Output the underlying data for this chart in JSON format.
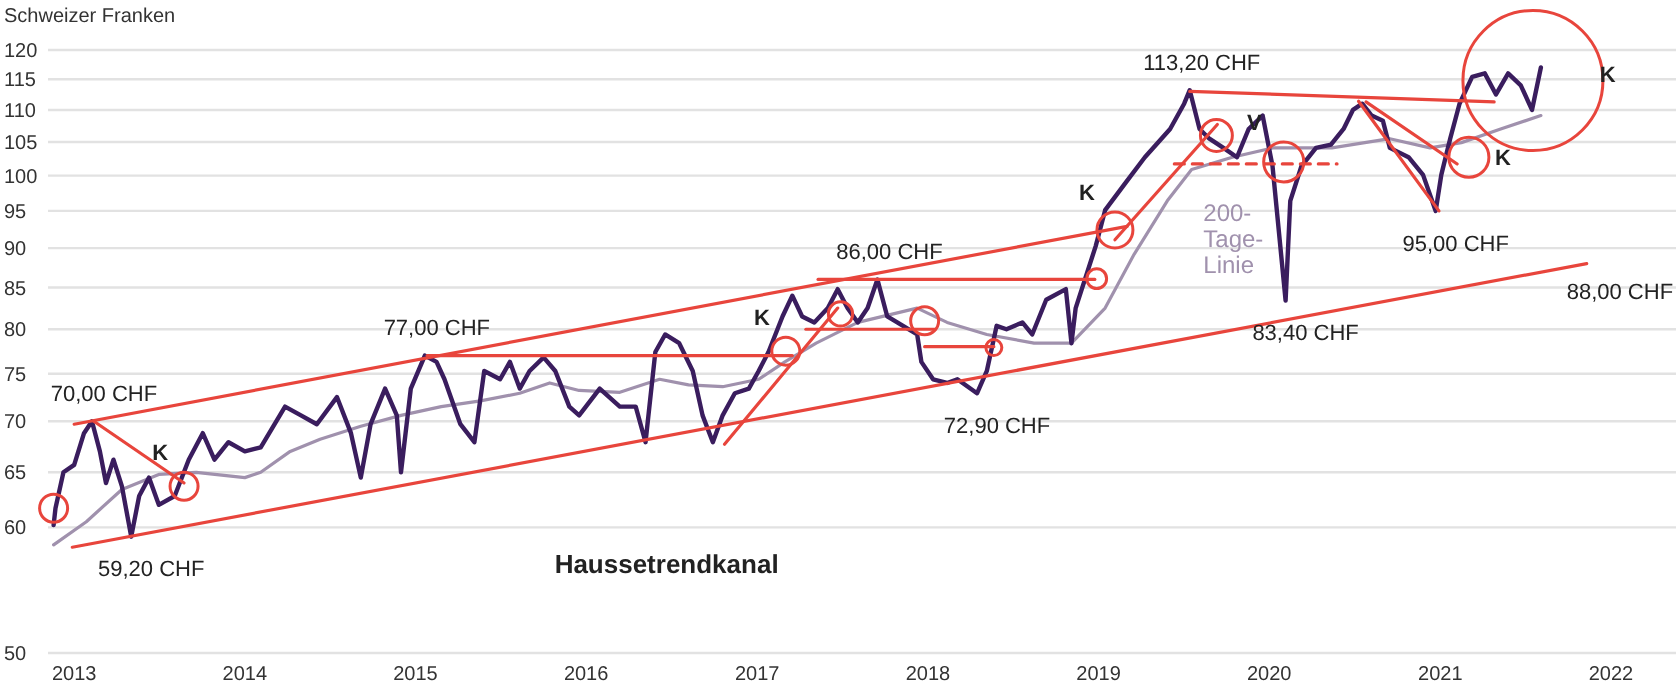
{
  "chart_data": {
    "type": "line",
    "ylabel": "Schweizer Franken",
    "log": "y",
    "grid": "y",
    "xlim": [
      "2012-11-06",
      "2022-05-20"
    ],
    "xticks": [
      "2013",
      "2014",
      "2015",
      "2016",
      "2017",
      "2018",
      "2019",
      "2020",
      "2021",
      "2022"
    ],
    "ylim": [
      50,
      120
    ],
    "yticks": [
      50,
      60,
      65,
      70,
      75,
      80,
      85,
      90,
      95,
      100,
      105,
      110,
      115,
      120
    ],
    "series": [
      {
        "name": "200-Tage-Linie",
        "color": "#a091ad",
        "x": [
          "2012-11-18",
          "2013-01-27",
          "2013-04-13",
          "2013-07-01",
          "2013-09-19",
          "2014-01-01",
          "2014-02-04",
          "2014-04-08",
          "2014-06-11",
          "2014-09-06",
          "2014-12-01",
          "2015-02-25",
          "2015-05-20",
          "2015-08-12",
          "2015-10-15",
          "2015-12-17",
          "2016-03-13",
          "2016-06-06",
          "2016-08-07",
          "2016-10-19",
          "2017-01-04",
          "2017-03-01",
          "2017-05-07",
          "2017-08-04",
          "2017-12-09",
          "2018-02-11",
          "2018-05-07",
          "2018-08-16",
          "2018-11-04",
          "2019-01-15",
          "2019-03-18",
          "2019-05-28",
          "2019-07-19",
          "2019-10-14",
          "2020-01-08",
          "2020-05-14",
          "2020-09-15",
          "2020-12-10",
          "2021-02-15",
          "2021-05-10",
          "2021-08-04"
        ],
        "values": [
          58.5,
          60.5,
          63.4,
          64.8,
          65.0,
          64.5,
          65.0,
          67.0,
          68.2,
          69.5,
          70.6,
          71.5,
          72.1,
          72.9,
          74.0,
          73.2,
          73.0,
          74.4,
          73.8,
          73.6,
          74.4,
          76.3,
          78.4,
          80.8,
          82.5,
          80.8,
          79.4,
          78.4,
          78.4,
          82.5,
          89.2,
          96.4,
          100.9,
          102.7,
          104.1,
          104.1,
          105.5,
          104.1,
          104.9,
          107.0,
          109.1
        ]
      },
      {
        "color": "#3a1d5e",
        "x": [
          "2012-11-18",
          "2012-11-22",
          "2012-12-09",
          "2013-01-01",
          "2013-01-22",
          "2013-02-08",
          "2013-02-25",
          "2013-03-10",
          "2013-03-26",
          "2013-04-13",
          "2013-05-03",
          "2013-05-20",
          "2013-06-10",
          "2013-07-01",
          "2013-08-04",
          "2013-09-03",
          "2013-10-03",
          "2013-10-28",
          "2013-11-27",
          "2014-01-01",
          "2014-02-04",
          "2014-03-28",
          "2014-05-01",
          "2014-06-04",
          "2014-07-17",
          "2014-08-16",
          "2014-09-06",
          "2014-09-27",
          "2014-10-28",
          "2014-11-22",
          "2014-12-01",
          "2014-12-22",
          "2015-01-21",
          "2015-02-15",
          "2015-03-04",
          "2015-04-07",
          "2015-05-07",
          "2015-05-28",
          "2015-07-01",
          "2015-07-22",
          "2015-08-12",
          "2015-09-02",
          "2015-10-02",
          "2015-10-27",
          "2015-11-26",
          "2015-12-17",
          "2016-01-30",
          "2016-03-13",
          "2016-04-16",
          "2016-05-07",
          "2016-05-28",
          "2016-06-18",
          "2016-07-18",
          "2016-08-16",
          "2016-09-06",
          "2016-09-28",
          "2016-10-19",
          "2016-11-14",
          "2016-12-14",
          "2017-01-04",
          "2017-01-25",
          "2017-02-24",
          "2017-03-17",
          "2017-04-07",
          "2017-05-03",
          "2017-06-01",
          "2017-06-22",
          "2017-07-13",
          "2017-08-04",
          "2017-08-25",
          "2017-09-15",
          "2017-10-06",
          "2017-12-09",
          "2017-12-18",
          "2018-01-12",
          "2018-02-11",
          "2018-03-05",
          "2018-04-16",
          "2018-05-07",
          "2018-05-28",
          "2018-06-18",
          "2018-07-22",
          "2018-08-12",
          "2018-09-11",
          "2018-10-23",
          "2018-11-04",
          "2018-11-13",
          "2018-12-26",
          "2019-01-15",
          "2019-02-26",
          "2019-04-10",
          "2019-06-03",
          "2019-07-03",
          "2019-07-15",
          "2019-08-05",
          "2019-08-26",
          "2019-09-25",
          "2019-10-24",
          "2019-11-18",
          "2019-12-18",
          "2020-01-08",
          "2020-02-05",
          "2020-02-15",
          "2020-03-10",
          "2020-04-10",
          "2020-05-12",
          "2020-06-08",
          "2020-06-28",
          "2020-07-18",
          "2020-08-07",
          "2020-08-31",
          "2020-09-15",
          "2020-10-25",
          "2020-11-25",
          "2020-12-22",
          "2021-01-03",
          "2021-01-22",
          "2021-02-11",
          "2021-03-10",
          "2021-04-06",
          "2021-04-30",
          "2021-05-26",
          "2021-06-22",
          "2021-07-16",
          "2021-08-04"
        ],
        "values": [
          60.2,
          61.7,
          65.0,
          65.7,
          68.8,
          70.0,
          67.0,
          64.0,
          66.2,
          63.7,
          59.2,
          62.8,
          64.5,
          62.0,
          62.8,
          66.2,
          68.8,
          66.2,
          67.9,
          67.0,
          67.4,
          71.5,
          70.6,
          69.7,
          72.5,
          68.8,
          64.5,
          69.7,
          73.4,
          70.6,
          65.0,
          73.4,
          77.0,
          76.3,
          74.4,
          69.7,
          67.9,
          75.3,
          74.4,
          76.3,
          73.4,
          75.3,
          76.8,
          75.3,
          71.5,
          70.6,
          73.4,
          71.5,
          71.5,
          67.9,
          77.4,
          79.4,
          78.4,
          75.3,
          70.6,
          67.9,
          70.6,
          72.9,
          73.4,
          75.3,
          77.4,
          81.5,
          84.0,
          81.5,
          80.8,
          82.5,
          84.8,
          82.5,
          80.8,
          82.5,
          86.0,
          81.5,
          79.4,
          76.3,
          74.4,
          74.0,
          74.4,
          72.9,
          75.3,
          80.4,
          80.0,
          80.8,
          79.4,
          83.5,
          84.8,
          78.4,
          82.5,
          90.3,
          95.1,
          98.8,
          102.7,
          107.0,
          111.0,
          113.2,
          107.0,
          105.5,
          104.1,
          102.7,
          107.0,
          109.1,
          101.4,
          83.4,
          96.4,
          101.4,
          104.1,
          104.6,
          107.0,
          110.0,
          111.0,
          109.1,
          108.3,
          104.1,
          102.7,
          100.1,
          95.0,
          100.1,
          105.5,
          111.0,
          115.4,
          116.0,
          112.5,
          116.0,
          114.0,
          110.0,
          117.0
        ]
      },
      {
        "color": "#e8453c",
        "x": [
          "2013-01-01",
          "2019-03-03"
        ],
        "values": [
          69.7,
          92.9
        ]
      },
      {
        "color": "#e8453c",
        "x": [
          "2012-12-28",
          "2021-11-10"
        ],
        "values": [
          58.3,
          88.0
        ]
      },
      {
        "color": "#e8453c",
        "x": [
          "2013-02-12",
          "2013-08-24"
        ],
        "values": [
          70.0,
          64.0
        ]
      },
      {
        "color": "#e8453c",
        "x": [
          "2015-01-26",
          "2017-03-17"
        ],
        "values": [
          77.0,
          77.0
        ]
      },
      {
        "color": "#e8453c",
        "x": [
          "2017-05-11",
          "2018-12-24"
        ],
        "values": [
          86.0,
          86.0
        ]
      },
      {
        "color": "#e8453c",
        "x": [
          "2017-04-15",
          "2018-01-17"
        ],
        "values": [
          80.0,
          80.0
        ]
      },
      {
        "color": "#e8453c",
        "x": [
          "2017-12-25",
          "2018-05-22"
        ],
        "values": [
          78.0,
          78.0
        ]
      },
      {
        "color": "#e8453c",
        "x": [
          "2016-10-23",
          "2017-06-22"
        ],
        "values": [
          67.7,
          82.5
        ]
      },
      {
        "color": "#e8453c",
        "x": [
          "2019-02-05",
          "2019-09-12"
        ],
        "values": [
          91.1,
          107.7
        ]
      },
      {
        "color": "#e8453c",
        "x": [
          "2019-07-15",
          "2021-04-26"
        ],
        "values": [
          113.0,
          111.3
        ]
      },
      {
        "color": "#e8453c",
        "line_style": "dashed",
        "x": [
          "2019-06-12",
          "2020-05-25"
        ],
        "values": [
          101.7,
          101.7
        ]
      },
      {
        "color": "#e8453c",
        "x": [
          "2020-07-10",
          "2020-12-29"
        ],
        "values": [
          111.4,
          95.0
        ]
      },
      {
        "color": "#e8453c",
        "x": [
          "2020-07-26",
          "2021-02-06"
        ],
        "values": [
          111.3,
          101.7
        ]
      },
      {
        "type": "bubble",
        "color": "#e8453c",
        "x": [
          "2012-11-18",
          "2013-08-24",
          "2017-03-03",
          "2017-06-28",
          "2017-12-25",
          "2018-05-22",
          "2018-12-28",
          "2019-02-05",
          "2019-09-10",
          "2020-02-01",
          "2021-03-03",
          "2021-07-18"
        ],
        "values": [
          61.7,
          63.7,
          77.5,
          81.8,
          81.0,
          77.9,
          86.1,
          92.4,
          106.0,
          102.0,
          102.7,
          114.8
        ],
        "sizes": [
          0.04,
          0.04,
          0.04,
          0.03,
          0.04,
          0.013,
          0.02,
          0.066,
          0.052,
          0.082,
          0.082,
          1
        ]
      }
    ],
    "annotations": [
      {
        "text": "70,00 CHF",
        "x": "2013-02-08",
        "y": 70.0
      },
      {
        "text": "K",
        "x": "2013-08-24",
        "y": 63.7
      },
      {
        "text": "59,20 CHF",
        "x": "2013-05-03",
        "y": 59.2
      },
      {
        "text": "77,00 CHF",
        "x": "2015-01-21",
        "y": 77.0
      },
      "Haussetrendkanal",
      {
        "text": "86,00 CHF",
        "x": "2017-09-15",
        "y": 86.0
      },
      {
        "text": "K",
        "x": "2017-03-03",
        "y": 77.5
      },
      {
        "text": "72,90 CHF",
        "x": "2018-04-16",
        "y": 72.9
      },
      {
        "text": "K",
        "x": "2019-02-05",
        "y": 92.4
      },
      {
        "text": "113,20 CHF",
        "x": "2019-07-15",
        "y": 113.2
      },
      {
        "text": "V",
        "x": "2020-02-01",
        "y": 102.0
      },
      {
        "text": "83,40 CHF",
        "x": "2020-02-05",
        "y": 83.4
      },
      {
        "text": "95,00 CHF",
        "x": "2020-12-22",
        "y": 95.0
      },
      {
        "text": "K",
        "x": "2021-03-03",
        "y": 102.7
      },
      "K",
      {
        "text": "88,00 CHF",
        "x": "2021-11-10",
        "y": 88.0
      }
    ]
  }
}
